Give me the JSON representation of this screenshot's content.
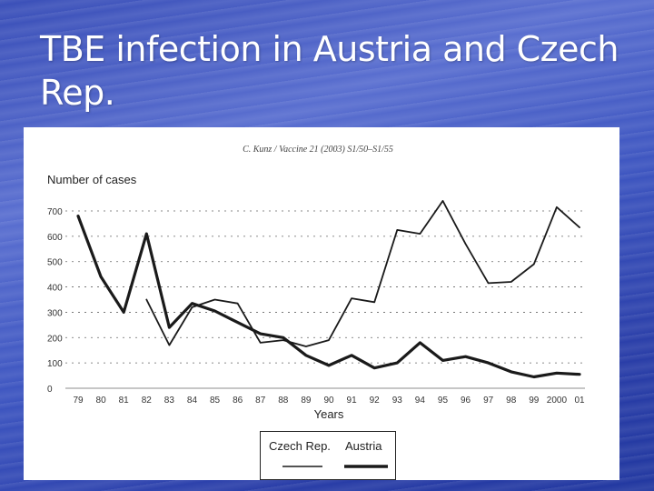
{
  "slide": {
    "title": "TBE infection in Austria and Czech Rep."
  },
  "chart_data": {
    "type": "line",
    "source": "C. Kunz / Vaccine 21 (2003) S1/50–S1/55",
    "ylabel": "Number of cases",
    "xlabel": "Years",
    "ylim": [
      0,
      700
    ],
    "yticks": [
      0,
      100,
      200,
      300,
      400,
      500,
      600,
      700
    ],
    "grid": "horizontal-dotted",
    "legend_position": "bottom-center",
    "categories": [
      "79",
      "80",
      "81",
      "82",
      "83",
      "84",
      "85",
      "86",
      "87",
      "88",
      "89",
      "90",
      "91",
      "92",
      "93",
      "94",
      "95",
      "96",
      "97",
      "98",
      "99",
      "2000",
      "01"
    ],
    "series": [
      {
        "name": "Czech Rep.",
        "style": "thin",
        "values": [
          null,
          null,
          null,
          350,
          170,
          320,
          350,
          335,
          180,
          190,
          165,
          190,
          355,
          340,
          625,
          610,
          740,
          570,
          415,
          420,
          490,
          715,
          635
        ]
      },
      {
        "name": "Austria",
        "style": "thick",
        "values": [
          680,
          440,
          300,
          610,
          240,
          335,
          305,
          260,
          215,
          200,
          130,
          90,
          130,
          80,
          100,
          180,
          110,
          125,
          100,
          65,
          45,
          60,
          55
        ]
      }
    ]
  }
}
